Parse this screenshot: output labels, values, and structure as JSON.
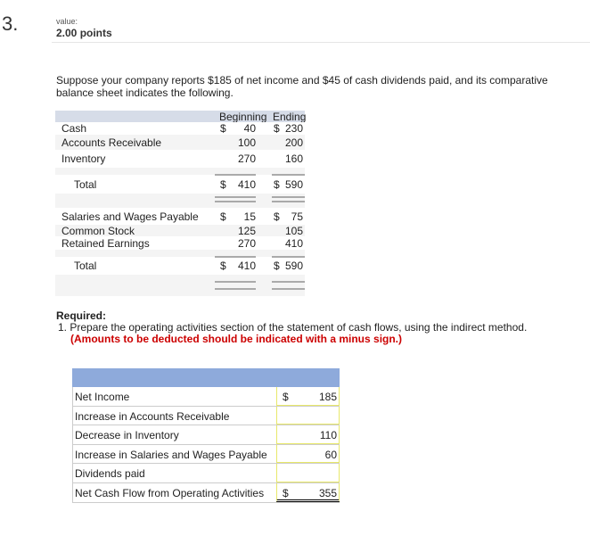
{
  "question": {
    "number": "3.",
    "value_label": "value:",
    "points": "2.00 points"
  },
  "prompt": "Suppose your company reports $185 of net income and $45 of cash dividends paid, and its comparative balance sheet indicates the following.",
  "balance_sheet": {
    "headers": [
      "Beginning",
      "Ending"
    ],
    "rows": [
      {
        "label": "Cash",
        "beg_dollar": "$",
        "beg": "40",
        "end_dollar": "$",
        "end": "230"
      },
      {
        "label": "Accounts Receivable",
        "beg": "100",
        "end": "200"
      },
      {
        "label": "Inventory",
        "beg": "270",
        "end": "160"
      },
      {
        "label": "Total",
        "beg_dollar": "$",
        "beg": "410",
        "end_dollar": "$",
        "end": "590",
        "total": true
      },
      {
        "label": "Salaries and Wages Payable",
        "beg_dollar": "$",
        "beg": "15",
        "end_dollar": "$",
        "end": "75"
      },
      {
        "label": "Common Stock",
        "beg": "125",
        "end": "105"
      },
      {
        "label": "Retained Earnings",
        "beg": "270",
        "end": "410"
      },
      {
        "label": "Total",
        "beg_dollar": "$",
        "beg": "410",
        "end_dollar": "$",
        "end": "590",
        "total": true
      }
    ]
  },
  "required": {
    "title": "Required:",
    "item": "1. Prepare the operating activities section of the statement of cash flows, using the indirect method.",
    "note": "(Amounts to be deducted should be indicated with a minus sign.)"
  },
  "answer_table": {
    "header_color": "#8eaadb",
    "rows": [
      {
        "label": "Net Income",
        "dollar": "$",
        "value": "185"
      },
      {
        "label": "Increase in Accounts Receivable",
        "value": ""
      },
      {
        "label": "Decrease in Inventory",
        "value": "110"
      },
      {
        "label": "Increase in Salaries and Wages Payable",
        "value": "60"
      },
      {
        "label": "Dividends paid",
        "value": ""
      },
      {
        "label": "Net Cash Flow from Operating Activities",
        "dollar": "$",
        "value": "355"
      }
    ]
  }
}
